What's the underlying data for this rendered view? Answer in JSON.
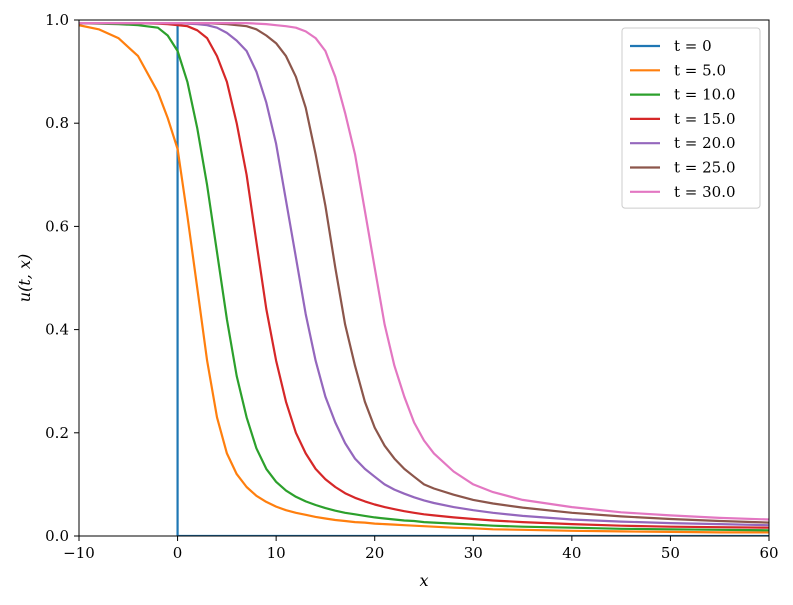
{
  "chart_data": {
    "type": "line",
    "xlabel": "x",
    "ylabel": "u(t, x)",
    "xlim": [
      -10,
      60
    ],
    "ylim": [
      0.0,
      1.0
    ],
    "x_ticks": [
      -10,
      0,
      10,
      20,
      30,
      40,
      50,
      60
    ],
    "x_tick_labels": [
      "−10",
      "0",
      "10",
      "20",
      "30",
      "40",
      "50",
      "60"
    ],
    "y_ticks": [
      0.0,
      0.2,
      0.4,
      0.6,
      0.8,
      1.0
    ],
    "y_tick_labels": [
      "0.0",
      "0.2",
      "0.4",
      "0.6",
      "0.8",
      "1.0"
    ],
    "grid": false,
    "legend_position": "top-right",
    "x": [
      -10,
      -8,
      -6,
      -4,
      -2,
      -1,
      0,
      1,
      2,
      3,
      4,
      5,
      6,
      7,
      8,
      9,
      10,
      11,
      12,
      13,
      14,
      15,
      16,
      17,
      18,
      19,
      20,
      21,
      22,
      23,
      24,
      25,
      26,
      28,
      30,
      32,
      35,
      40,
      45,
      50,
      55,
      60
    ],
    "series": [
      {
        "name": "t = 0",
        "color": "#1f77b4",
        "step": true,
        "values": [
          0.994,
          0.994,
          0.994,
          0.994,
          0.994,
          0.994,
          0.0,
          0.0,
          0.0,
          0.0,
          0.0,
          0.0,
          0.0,
          0.0,
          0.0,
          0.0,
          0.0,
          0.0,
          0.0,
          0.0,
          0.0,
          0.0,
          0.0,
          0.0,
          0.0,
          0.0,
          0.0,
          0.0,
          0.0,
          0.0,
          0.0,
          0.0,
          0.0,
          0.0,
          0.0,
          0.0,
          0.0,
          0.0,
          0.0,
          0.0,
          0.0,
          0.0
        ]
      },
      {
        "name": "t = 5.0",
        "color": "#ff7f0e",
        "values": [
          0.99,
          0.982,
          0.965,
          0.93,
          0.86,
          0.81,
          0.75,
          0.62,
          0.48,
          0.34,
          0.23,
          0.16,
          0.12,
          0.095,
          0.078,
          0.066,
          0.057,
          0.05,
          0.045,
          0.041,
          0.037,
          0.034,
          0.031,
          0.029,
          0.027,
          0.026,
          0.024,
          0.023,
          0.022,
          0.021,
          0.02,
          0.019,
          0.018,
          0.016,
          0.015,
          0.013,
          0.012,
          0.01,
          0.009,
          0.008,
          0.007,
          0.007
        ]
      },
      {
        "name": "t = 10.0",
        "color": "#2ca02c",
        "values": [
          0.994,
          0.993,
          0.992,
          0.99,
          0.985,
          0.97,
          0.94,
          0.88,
          0.79,
          0.68,
          0.55,
          0.42,
          0.31,
          0.23,
          0.17,
          0.13,
          0.105,
          0.088,
          0.076,
          0.067,
          0.06,
          0.054,
          0.049,
          0.045,
          0.042,
          0.039,
          0.036,
          0.034,
          0.032,
          0.03,
          0.029,
          0.027,
          0.026,
          0.024,
          0.022,
          0.02,
          0.018,
          0.016,
          0.014,
          0.013,
          0.012,
          0.011
        ]
      },
      {
        "name": "t = 15.0",
        "color": "#d62728",
        "values": [
          0.994,
          0.994,
          0.994,
          0.994,
          0.993,
          0.992,
          0.99,
          0.988,
          0.98,
          0.965,
          0.93,
          0.88,
          0.8,
          0.7,
          0.57,
          0.44,
          0.34,
          0.26,
          0.2,
          0.16,
          0.13,
          0.11,
          0.095,
          0.083,
          0.074,
          0.067,
          0.061,
          0.056,
          0.052,
          0.048,
          0.045,
          0.042,
          0.04,
          0.036,
          0.033,
          0.03,
          0.027,
          0.023,
          0.02,
          0.018,
          0.017,
          0.016
        ]
      },
      {
        "name": "t = 20.0",
        "color": "#9467bd",
        "values": [
          0.994,
          0.994,
          0.994,
          0.994,
          0.994,
          0.994,
          0.994,
          0.993,
          0.992,
          0.99,
          0.985,
          0.975,
          0.96,
          0.94,
          0.9,
          0.84,
          0.76,
          0.65,
          0.54,
          0.43,
          0.34,
          0.27,
          0.22,
          0.18,
          0.15,
          0.13,
          0.115,
          0.1,
          0.09,
          0.082,
          0.075,
          0.069,
          0.064,
          0.056,
          0.05,
          0.045,
          0.039,
          0.032,
          0.028,
          0.025,
          0.023,
          0.021
        ]
      },
      {
        "name": "t = 25.0",
        "color": "#8c564b",
        "values": [
          0.994,
          0.994,
          0.994,
          0.994,
          0.994,
          0.994,
          0.994,
          0.994,
          0.994,
          0.994,
          0.993,
          0.992,
          0.99,
          0.988,
          0.982,
          0.97,
          0.955,
          0.93,
          0.89,
          0.83,
          0.74,
          0.64,
          0.52,
          0.41,
          0.33,
          0.26,
          0.21,
          0.175,
          0.15,
          0.13,
          0.115,
          0.1,
          0.092,
          0.08,
          0.07,
          0.063,
          0.055,
          0.045,
          0.038,
          0.033,
          0.029,
          0.026
        ]
      },
      {
        "name": "t = 30.0",
        "color": "#e377c2",
        "values": [
          0.994,
          0.994,
          0.994,
          0.994,
          0.994,
          0.994,
          0.994,
          0.994,
          0.994,
          0.994,
          0.994,
          0.994,
          0.994,
          0.994,
          0.993,
          0.992,
          0.99,
          0.988,
          0.985,
          0.978,
          0.965,
          0.94,
          0.89,
          0.82,
          0.74,
          0.63,
          0.52,
          0.41,
          0.33,
          0.27,
          0.22,
          0.185,
          0.16,
          0.125,
          0.1,
          0.085,
          0.07,
          0.056,
          0.046,
          0.04,
          0.035,
          0.032
        ]
      }
    ]
  }
}
